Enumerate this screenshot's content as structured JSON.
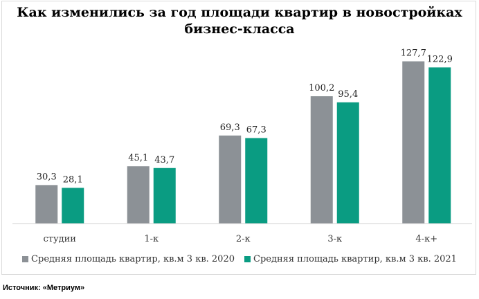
{
  "chart_data": {
    "type": "bar",
    "title_lines": [
      "Как изменились за год площади квартир в новостройках",
      "бизнес-класса"
    ],
    "categories": [
      "студии",
      "1-к",
      "2-к",
      "3-к",
      "4-к+"
    ],
    "series": [
      {
        "name": "Средняя площадь квартир, кв.м 3 кв. 2020",
        "color": "#8c9196",
        "values": [
          30.3,
          45.1,
          69.3,
          100.2,
          127.7
        ],
        "labels": [
          "30,3",
          "45,1",
          "69,3",
          "100,2",
          "127,7"
        ]
      },
      {
        "name": "Средняя площадь квартир, кв.м 3 кв. 2021",
        "color": "#0a9c82",
        "values": [
          28.1,
          43.7,
          67.3,
          95.4,
          122.9
        ],
        "labels": [
          "28,1",
          "43,7",
          "67,3",
          "95,4",
          "122,9"
        ]
      }
    ],
    "ylim": [
      0,
      140
    ],
    "grid": false,
    "legend_position": "bottom",
    "xlabel": "",
    "ylabel": ""
  },
  "source": "Источник: «Метриум»"
}
